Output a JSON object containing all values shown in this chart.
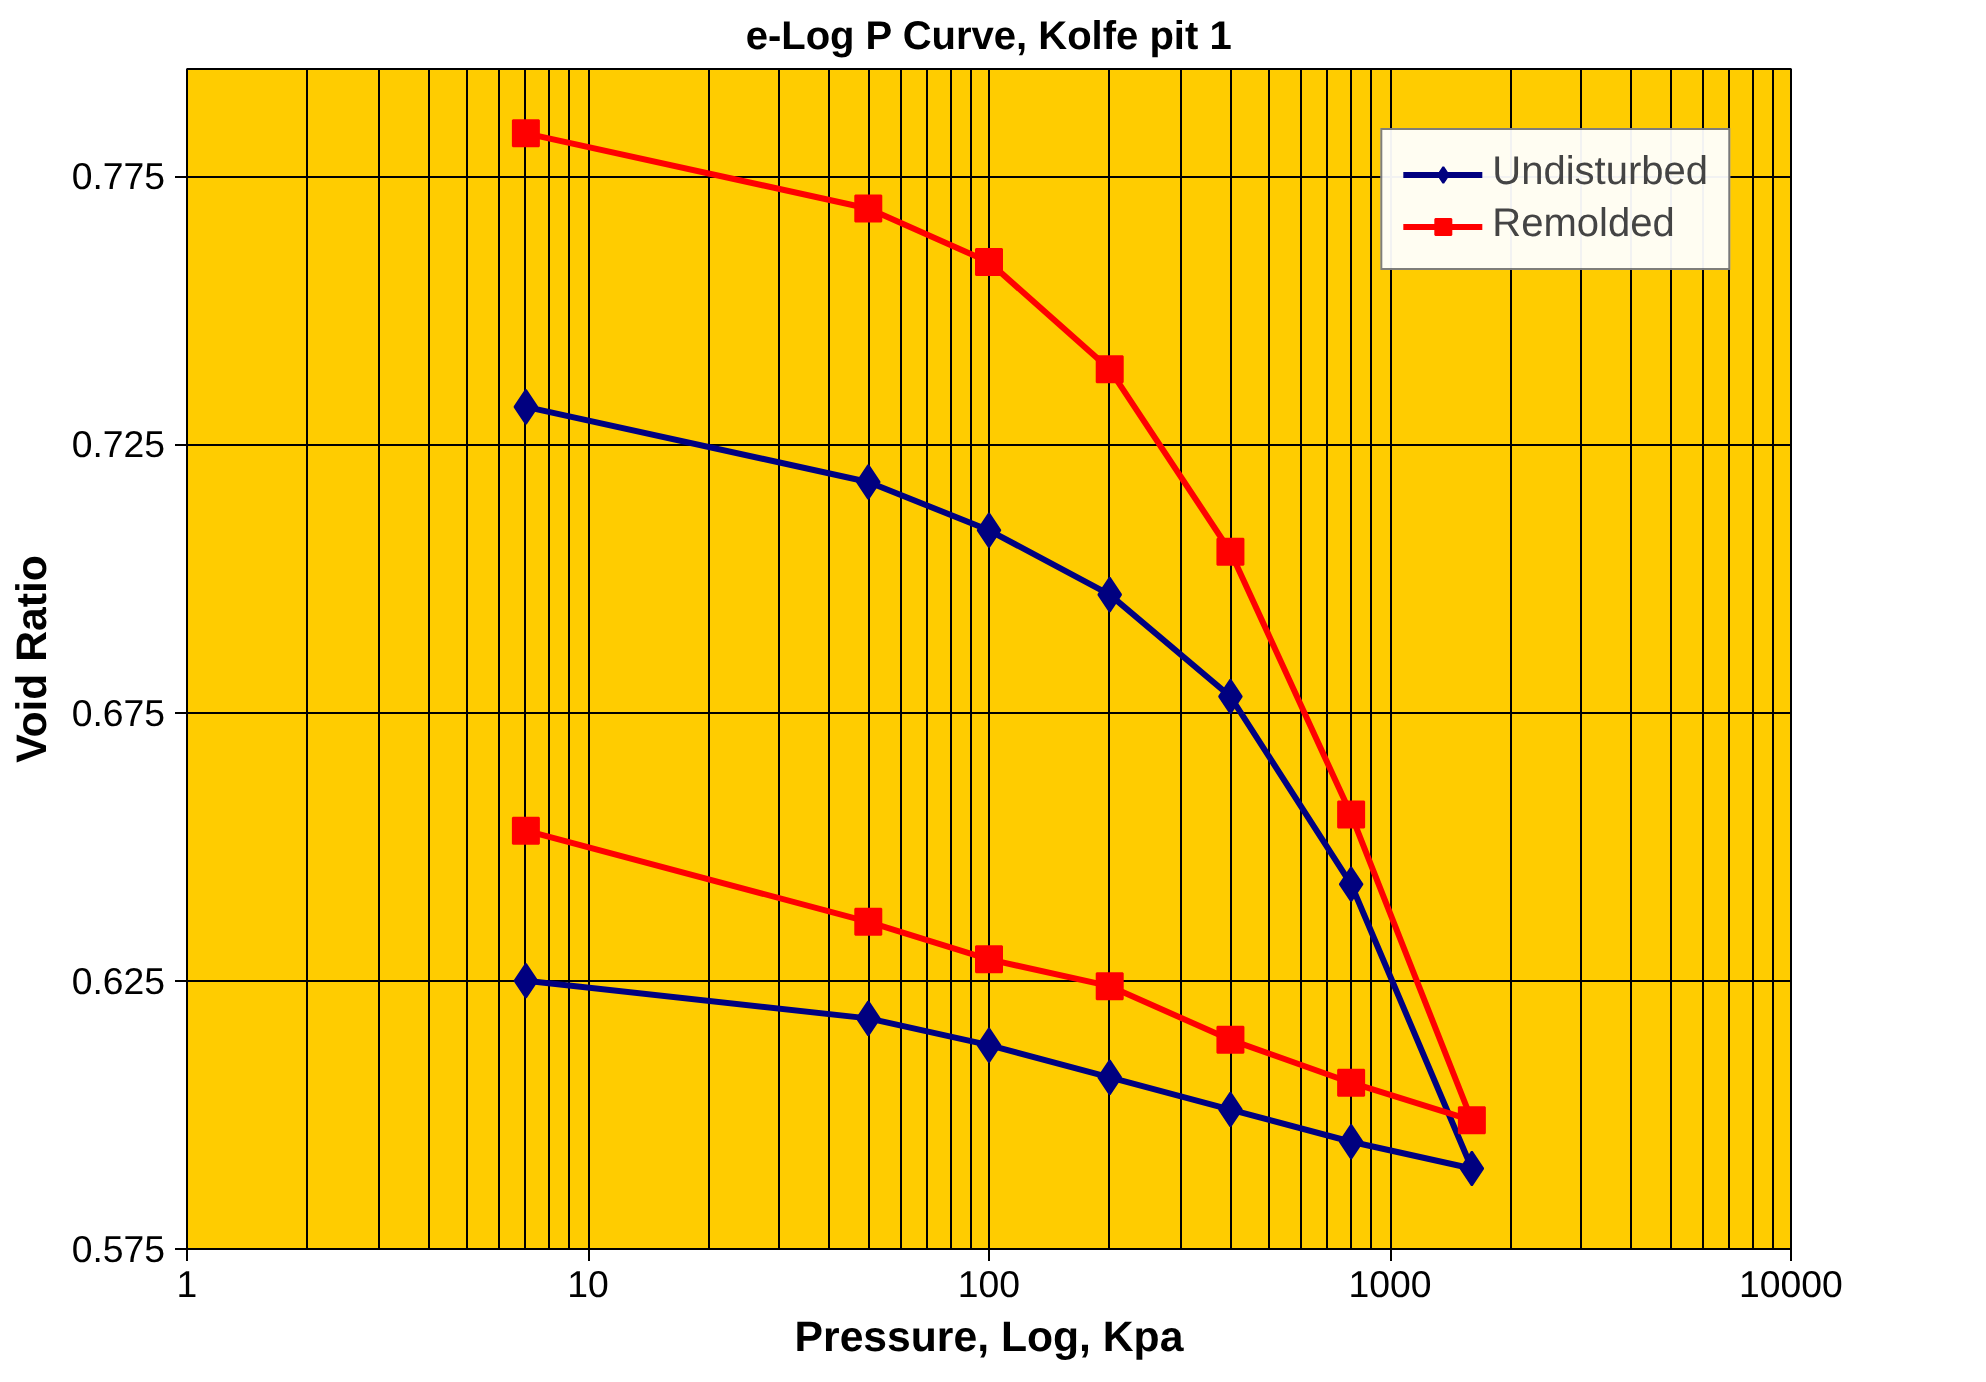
{
  "chart_data": {
    "type": "line",
    "title": "e-Log P Curve, Kolfe pit 1",
    "xlabel": "Pressure, Log, Kpa",
    "ylabel": "Void Ratio",
    "log": "x",
    "xlim": [
      1,
      10000
    ],
    "xticks": [
      1,
      10,
      100,
      1000,
      10000
    ],
    "ylim": [
      0.575,
      0.795
    ],
    "yticks": [
      0.575,
      0.625,
      0.675,
      0.725,
      0.775
    ],
    "grid": true,
    "legend": "top right",
    "line_style": "solid",
    "series": [
      {
        "name": "Undisturbed",
        "color": "#000080",
        "marker": "diamond",
        "x": [
          7,
          50,
          100,
          200,
          400,
          800,
          1600,
          800,
          400,
          200,
          100,
          50,
          7
        ],
        "values": [
          0.732,
          0.718,
          0.709,
          0.697,
          0.678,
          0.643,
          0.59,
          0.595,
          0.601,
          0.607,
          0.613,
          0.618,
          0.625
        ]
      },
      {
        "name": "Remolded",
        "color": "#ff0000",
        "marker": "square",
        "x": [
          7,
          50,
          100,
          200,
          400,
          800,
          1600,
          800,
          400,
          200,
          100,
          50,
          7
        ],
        "values": [
          0.783,
          0.769,
          0.759,
          0.739,
          0.705,
          0.656,
          0.599,
          0.606,
          0.614,
          0.624,
          0.629,
          0.636,
          0.653
        ]
      }
    ]
  }
}
